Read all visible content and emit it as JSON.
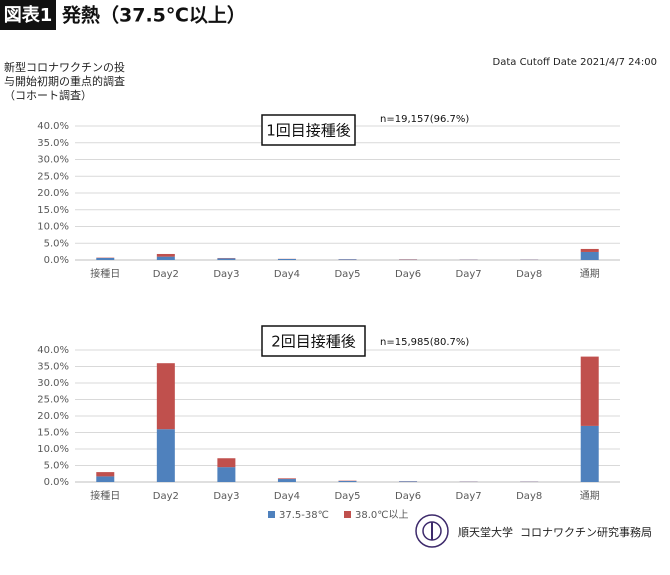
{
  "header": {
    "badge": "図表1",
    "title": "発熱（37.5℃以上）"
  },
  "notes": [
    "新型コロナワクチンの投",
    "与開始初期の重点的調査",
    "（コホート調査）"
  ],
  "cutoff": "Data Cutoff Date 2021/4/7 24:00",
  "footer": {
    "org": "順天堂大学",
    "office": "コロナワクチン研究事務局"
  },
  "chart_data": [
    {
      "type": "bar",
      "stacked": true,
      "grid": true,
      "annotation_box": "1回目接種後",
      "sample_size": "n=19,157(96.7%)",
      "categories": [
        "接種日",
        "Day2",
        "Day3",
        "Day4",
        "Day5",
        "Day6",
        "Day7",
        "Day8",
        "通期"
      ],
      "series": [
        {
          "color": "#4f81bd",
          "values": [
            0.6,
            1.0,
            0.5,
            0.3,
            0.2,
            0.1,
            0.1,
            0.1,
            2.4
          ]
        },
        {
          "color": "#c0504d",
          "values": [
            0.1,
            0.8,
            0.1,
            0.05,
            0.05,
            0.1,
            0.05,
            0.05,
            0.9
          ]
        }
      ],
      "ylim": [
        0,
        40
      ],
      "yticks": [
        {
          "value": 0,
          "label": "0.0%"
        },
        {
          "value": 5,
          "label": "5.0%"
        },
        {
          "value": 10,
          "label": "10.0%"
        },
        {
          "value": 15,
          "label": "15.0%"
        },
        {
          "value": 20,
          "label": "20.0%"
        },
        {
          "value": 25,
          "label": "25.0%"
        },
        {
          "value": 30,
          "label": "30.0%"
        },
        {
          "value": 35,
          "label": "35.0%"
        },
        {
          "value": 40,
          "label": "40.0%"
        }
      ]
    },
    {
      "type": "bar",
      "stacked": true,
      "grid": true,
      "annotation_box": "2回目接種後",
      "sample_size": "n=15,985(80.7%)",
      "categories": [
        "接種日",
        "Day2",
        "Day3",
        "Day4",
        "Day5",
        "Day6",
        "Day7",
        "Day8",
        "通期"
      ],
      "series": [
        {
          "name": "37.5-38℃",
          "color": "#4f81bd",
          "values": [
            1.7,
            16,
            4.5,
            0.9,
            0.3,
            0.2,
            0.1,
            0.1,
            17
          ]
        },
        {
          "name": "38.0℃以上",
          "color": "#c0504d",
          "values": [
            1.3,
            20,
            2.7,
            0.2,
            0.1,
            0.05,
            0.05,
            0.05,
            21
          ]
        }
      ],
      "ylim": [
        0,
        40
      ],
      "yticks": [
        {
          "value": 0,
          "label": "0.0%"
        },
        {
          "value": 5,
          "label": "5.0%"
        },
        {
          "value": 10,
          "label": "10.0%"
        },
        {
          "value": 15,
          "label": "15.0%"
        },
        {
          "value": 20,
          "label": "20.0%"
        },
        {
          "value": 25,
          "label": "25.0%"
        },
        {
          "value": 30,
          "label": "30.0%"
        },
        {
          "value": 35,
          "label": "35.0%"
        },
        {
          "value": 40,
          "label": "40.0%"
        }
      ]
    }
  ]
}
